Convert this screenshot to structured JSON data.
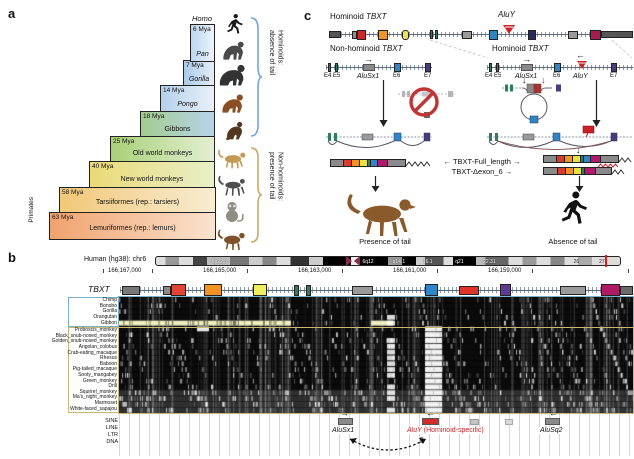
{
  "colors": {
    "aluy_red": "#cc2027",
    "exon_blue": "#2e86c8",
    "hominoid_brace_blue": "#6fa8d6",
    "nonhominoid_brace_tan": "#c9ac62",
    "gibbon_highlight_yellow": "#efeec0"
  },
  "icons": {
    "human-icon": "running human silhouette",
    "chimp-icon": "chimpanzee silhouette",
    "gorilla-icon": "gorilla silhouette",
    "orangutan-icon": "orangutan silhouette",
    "gibbon-icon": "gibbon silhouette",
    "old-world-monkey-icon": "macaque silhouette with tail",
    "new-world-monkey-icon": "spider monkey silhouette with tail",
    "tarsier-icon": "tarsier silhouette",
    "lemur-icon": "lemur silhouette",
    "monkey-icon": "monkey with tail silhouette",
    "runner-icon": "tailless running human silhouette",
    "no-symbol-icon": "red prohibition circle",
    "aluy-insertion-icon": "red downward triangle"
  },
  "panel_a": {
    "label": "a",
    "primates": "Primates",
    "homo": "Homo",
    "clades": [
      {
        "name": "Pan",
        "age": "6 Mya"
      },
      {
        "name": "Gorilla",
        "age": "7 Mya"
      },
      {
        "name": "Pongo",
        "age": "14 Mya"
      },
      {
        "name": "Gibbons",
        "age": "18 Mya"
      },
      {
        "name": "Old world monkeys",
        "age": "25 Mya"
      },
      {
        "name": "New world monkeys",
        "age": "40 Mya"
      },
      {
        "name": "Tarsiiformes (rep.: tarsiers)",
        "age": "58 Mya"
      },
      {
        "name": "Lemuriformes (rep.: lemurs)",
        "age": "63 Mya"
      }
    ],
    "brace_hominoid": "Hominoids:\nabsence of tail",
    "brace_nonhominoid": "Non-hominoids:\npresence of tail"
  },
  "panel_b": {
    "label": "b",
    "genome": "Human (hg38): chr6",
    "bands": [
      "6p22.3",
      "6q12",
      "q14.1",
      "16.1",
      "q21",
      "22.31",
      "26",
      "27"
    ],
    "coords": [
      "166,167,000",
      "166,165,000",
      "166,163,000",
      "166,161,000",
      "166,159,000"
    ],
    "gene": "TBXT",
    "species": [
      "Chimp",
      "Bonobo",
      "Gorilla",
      "Orangutan",
      "Gibbon",
      "Proboscis_monkey",
      "Black_snub-nosed_monkey",
      "Golden_snub-nosed_monkey",
      "Angolan_colobus",
      "Crab-eating_macaque",
      "Rhesus",
      "Baboon",
      "Pig-tailed_macaque",
      "Sooty_mangabey",
      "Green_monkey",
      "Drill",
      "Squirrel_monkey",
      "Ma's_night_monkey",
      "Marmoset",
      "White-faced_sapajou"
    ],
    "tracks": [
      "SINE",
      "LINE",
      "LTR",
      "DNA"
    ],
    "repeats": {
      "alusx1": "AluSx1",
      "aluy": "AluY",
      "aluy_note": "(Hominoid-specific)",
      "alusq2": "AluSq2"
    }
  },
  "panel_c": {
    "label": "c",
    "hominoid_prefix": "Hominoid ",
    "nonhominoid_prefix": "Non-hominoid ",
    "gene": "TBXT",
    "aluy": "AluY",
    "alusx1": "AluSx1",
    "exons": {
      "e4": "E4",
      "e5": "E5",
      "e6": "E6",
      "e7": "E7"
    },
    "arrow_right": "→",
    "arrow_left": "←",
    "arrow_down": "↓",
    "isoform_full": "← TBXT-Full_length →",
    "isoform_delta": "TBXT-Δexon_6  →",
    "presence": "Presence of tail",
    "absence": "Absence of tail"
  }
}
